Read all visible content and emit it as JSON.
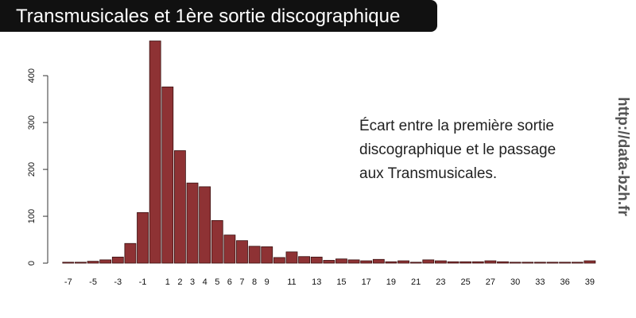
{
  "chart_data": {
    "type": "bar",
    "title": "Transmusicales et 1ère sortie discographique",
    "annotation": [
      "Écart entre la première sortie",
      "discographique et le passage",
      "aux Transmusicales."
    ],
    "source": "http://data-bzh.fr",
    "categories": [
      "-7",
      null,
      "-5",
      null,
      "-3",
      null,
      "-1",
      null,
      "1",
      "2",
      "3",
      "4",
      "5",
      "6",
      "7",
      "8",
      "9",
      null,
      "11",
      null,
      "13",
      null,
      "15",
      null,
      "17",
      null,
      "19",
      null,
      "21",
      null,
      "23",
      null,
      "25",
      null,
      "27",
      null,
      "30",
      null,
      "33",
      null,
      "36",
      null,
      "39"
    ],
    "values": [
      2,
      2,
      4,
      7,
      13,
      42,
      108,
      474,
      376,
      240,
      171,
      163,
      91,
      60,
      48,
      36,
      35,
      12,
      24,
      14,
      13,
      6,
      9,
      7,
      5,
      8,
      3,
      5,
      2,
      7,
      5,
      3,
      3,
      3,
      5,
      3,
      2,
      2,
      2,
      2,
      2,
      2,
      5
    ],
    "color": "#8e3234",
    "ylim": [
      0,
      480
    ],
    "yticks": [
      0,
      100,
      200,
      300,
      400
    ],
    "grid": false
  }
}
